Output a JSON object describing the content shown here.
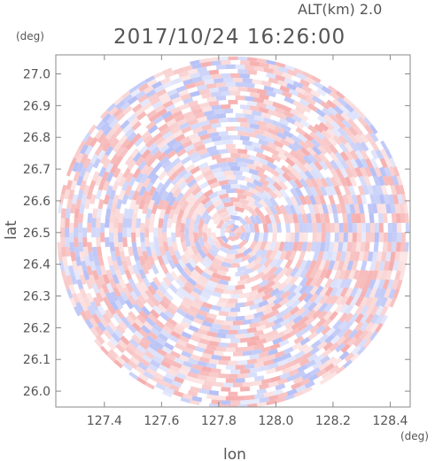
{
  "header": {
    "altitude_label": "ALT(km)  2.0",
    "timestamp": "2017/10/24  16:26:00"
  },
  "axes": {
    "y_unit": "(deg)",
    "x_unit": "(deg)",
    "x_title": "lon",
    "y_title": "lat"
  },
  "chart_data": {
    "type": "heatmap",
    "description_free": true,
    "x": {
      "label": "lon",
      "unit": "deg",
      "range": [
        127.23,
        128.47
      ],
      "ticks": [
        127.4,
        127.6,
        127.8,
        128.0,
        128.2,
        128.4
      ],
      "tick_labels": [
        "127.4",
        "127.6",
        "127.8",
        "128.0",
        "128.2",
        "128.4"
      ]
    },
    "y": {
      "label": "lat",
      "unit": "deg",
      "range": [
        25.95,
        27.06
      ],
      "ticks": [
        26.0,
        26.1,
        26.2,
        26.3,
        26.4,
        26.5,
        26.6,
        26.7,
        26.8,
        26.9,
        27.0
      ],
      "tick_labels": [
        "26.0",
        "26.1",
        "26.2",
        "26.3",
        "26.4",
        "26.5",
        "26.6",
        "26.7",
        "26.8",
        "26.9",
        "27.0"
      ]
    },
    "radar_center": {
      "lon": 127.85,
      "lat": 26.5
    },
    "radar_radius_deg_lat": 0.555,
    "colors": {
      "positive": "#f4a0a0",
      "negative": "#a8b4f4",
      "neutral": "#ffffff",
      "frame": "#888888",
      "text": "#555555"
    },
    "grid": false
  }
}
